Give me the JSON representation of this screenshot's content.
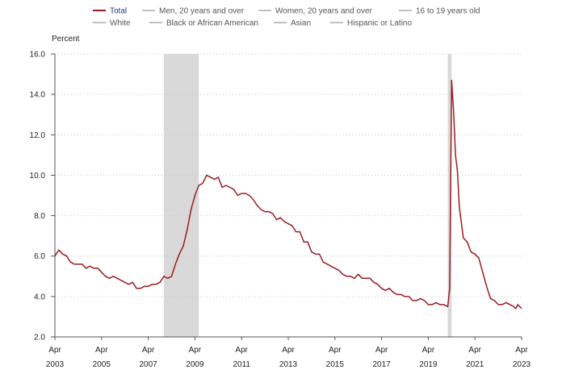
{
  "chart_data": {
    "type": "line",
    "title": "",
    "y_unit_label": "Percent",
    "xlabel": "",
    "ylabel": "",
    "ylim": [
      2.0,
      16.0
    ],
    "y_ticks": [
      "2.0",
      "4.0",
      "6.0",
      "8.0",
      "10.0",
      "12.0",
      "14.0",
      "16.0"
    ],
    "x_range": [
      "2003-04",
      "2023-04"
    ],
    "x_ticks": [
      {
        "month": "Apr",
        "year": "2003"
      },
      {
        "month": "Apr",
        "year": "2005"
      },
      {
        "month": "Apr",
        "year": "2007"
      },
      {
        "month": "Apr",
        "year": "2009"
      },
      {
        "month": "Apr",
        "year": "2011"
      },
      {
        "month": "Apr",
        "year": "2013"
      },
      {
        "month": "Apr",
        "year": "2015"
      },
      {
        "month": "Apr",
        "year": "2017"
      },
      {
        "month": "Apr",
        "year": "2019"
      },
      {
        "month": "Apr",
        "year": "2021"
      },
      {
        "month": "Apr",
        "year": "2023"
      }
    ],
    "grid": "horizontal dotted",
    "legend_position": "top",
    "legend": [
      {
        "label": "Total",
        "active": true,
        "color": "#9b1c22"
      },
      {
        "label": "Men, 20 years and over",
        "active": false,
        "color": "#aaaaaa"
      },
      {
        "label": "Women, 20 years and over",
        "active": false,
        "color": "#aaaaaa"
      },
      {
        "label": "16 to 19 years old",
        "active": false,
        "color": "#aaaaaa"
      },
      {
        "label": "White",
        "active": false,
        "color": "#aaaaaa"
      },
      {
        "label": "Black or African American",
        "active": false,
        "color": "#aaaaaa"
      },
      {
        "label": "Asian",
        "active": false,
        "color": "#aaaaaa"
      },
      {
        "label": "Hispanic or Latino",
        "active": false,
        "color": "#aaaaaa"
      }
    ],
    "recession_shading": [
      {
        "start": "2007-12",
        "end": "2009-06"
      },
      {
        "start": "2020-02",
        "end": "2020-04"
      }
    ],
    "colors": {
      "series": "#9b1c22",
      "shading": "#d9d9d9",
      "grid": "#c8c8c8",
      "axis": "#555555"
    },
    "series": [
      {
        "name": "Total",
        "points": [
          [
            "2003-04",
            6.0
          ],
          [
            "2003-06",
            6.3
          ],
          [
            "2003-08",
            6.1
          ],
          [
            "2003-10",
            6.0
          ],
          [
            "2003-12",
            5.7
          ],
          [
            "2004-02",
            5.6
          ],
          [
            "2004-04",
            5.6
          ],
          [
            "2004-06",
            5.6
          ],
          [
            "2004-08",
            5.4
          ],
          [
            "2004-10",
            5.5
          ],
          [
            "2004-12",
            5.4
          ],
          [
            "2005-02",
            5.4
          ],
          [
            "2005-04",
            5.2
          ],
          [
            "2005-06",
            5.0
          ],
          [
            "2005-08",
            4.9
          ],
          [
            "2005-10",
            5.0
          ],
          [
            "2005-12",
            4.9
          ],
          [
            "2006-02",
            4.8
          ],
          [
            "2006-04",
            4.7
          ],
          [
            "2006-06",
            4.6
          ],
          [
            "2006-08",
            4.7
          ],
          [
            "2006-10",
            4.4
          ],
          [
            "2006-12",
            4.4
          ],
          [
            "2007-02",
            4.5
          ],
          [
            "2007-04",
            4.5
          ],
          [
            "2007-06",
            4.6
          ],
          [
            "2007-08",
            4.6
          ],
          [
            "2007-10",
            4.7
          ],
          [
            "2007-12",
            5.0
          ],
          [
            "2008-02",
            4.9
          ],
          [
            "2008-04",
            5.0
          ],
          [
            "2008-06",
            5.6
          ],
          [
            "2008-08",
            6.1
          ],
          [
            "2008-10",
            6.5
          ],
          [
            "2008-12",
            7.3
          ],
          [
            "2009-02",
            8.3
          ],
          [
            "2009-04",
            9.0
          ],
          [
            "2009-06",
            9.5
          ],
          [
            "2009-08",
            9.6
          ],
          [
            "2009-10",
            10.0
          ],
          [
            "2009-12",
            9.9
          ],
          [
            "2010-02",
            9.8
          ],
          [
            "2010-04",
            9.9
          ],
          [
            "2010-06",
            9.4
          ],
          [
            "2010-08",
            9.5
          ],
          [
            "2010-10",
            9.4
          ],
          [
            "2010-12",
            9.3
          ],
          [
            "2011-02",
            9.0
          ],
          [
            "2011-04",
            9.1
          ],
          [
            "2011-06",
            9.1
          ],
          [
            "2011-08",
            9.0
          ],
          [
            "2011-10",
            8.8
          ],
          [
            "2011-12",
            8.5
          ],
          [
            "2012-02",
            8.3
          ],
          [
            "2012-04",
            8.2
          ],
          [
            "2012-06",
            8.2
          ],
          [
            "2012-08",
            8.1
          ],
          [
            "2012-10",
            7.8
          ],
          [
            "2012-12",
            7.9
          ],
          [
            "2013-02",
            7.7
          ],
          [
            "2013-04",
            7.6
          ],
          [
            "2013-06",
            7.5
          ],
          [
            "2013-08",
            7.2
          ],
          [
            "2013-10",
            7.2
          ],
          [
            "2013-12",
            6.7
          ],
          [
            "2014-02",
            6.7
          ],
          [
            "2014-04",
            6.2
          ],
          [
            "2014-06",
            6.1
          ],
          [
            "2014-08",
            6.1
          ],
          [
            "2014-10",
            5.7
          ],
          [
            "2014-12",
            5.6
          ],
          [
            "2015-02",
            5.5
          ],
          [
            "2015-04",
            5.4
          ],
          [
            "2015-06",
            5.3
          ],
          [
            "2015-08",
            5.1
          ],
          [
            "2015-10",
            5.0
          ],
          [
            "2015-12",
            5.0
          ],
          [
            "2016-02",
            4.9
          ],
          [
            "2016-04",
            5.1
          ],
          [
            "2016-06",
            4.9
          ],
          [
            "2016-08",
            4.9
          ],
          [
            "2016-10",
            4.9
          ],
          [
            "2016-12",
            4.7
          ],
          [
            "2017-02",
            4.6
          ],
          [
            "2017-04",
            4.4
          ],
          [
            "2017-06",
            4.3
          ],
          [
            "2017-08",
            4.4
          ],
          [
            "2017-10",
            4.2
          ],
          [
            "2017-12",
            4.1
          ],
          [
            "2018-02",
            4.1
          ],
          [
            "2018-04",
            4.0
          ],
          [
            "2018-06",
            4.0
          ],
          [
            "2018-08",
            3.8
          ],
          [
            "2018-10",
            3.8
          ],
          [
            "2018-12",
            3.9
          ],
          [
            "2019-02",
            3.8
          ],
          [
            "2019-04",
            3.6
          ],
          [
            "2019-06",
            3.6
          ],
          [
            "2019-08",
            3.7
          ],
          [
            "2019-10",
            3.6
          ],
          [
            "2019-12",
            3.6
          ],
          [
            "2020-02",
            3.5
          ],
          [
            "2020-03",
            4.4
          ],
          [
            "2020-04",
            14.7
          ],
          [
            "2020-05",
            13.2
          ],
          [
            "2020-06",
            11.0
          ],
          [
            "2020-07",
            10.2
          ],
          [
            "2020-08",
            8.4
          ],
          [
            "2020-10",
            6.9
          ],
          [
            "2020-12",
            6.7
          ],
          [
            "2021-02",
            6.2
          ],
          [
            "2021-04",
            6.1
          ],
          [
            "2021-06",
            5.9
          ],
          [
            "2021-08",
            5.2
          ],
          [
            "2021-10",
            4.5
          ],
          [
            "2021-12",
            3.9
          ],
          [
            "2022-02",
            3.8
          ],
          [
            "2022-04",
            3.6
          ],
          [
            "2022-06",
            3.6
          ],
          [
            "2022-08",
            3.7
          ],
          [
            "2022-10",
            3.6
          ],
          [
            "2022-12",
            3.5
          ],
          [
            "2023-01",
            3.4
          ],
          [
            "2023-02",
            3.6
          ],
          [
            "2023-03",
            3.5
          ],
          [
            "2023-04",
            3.4
          ]
        ]
      }
    ]
  }
}
